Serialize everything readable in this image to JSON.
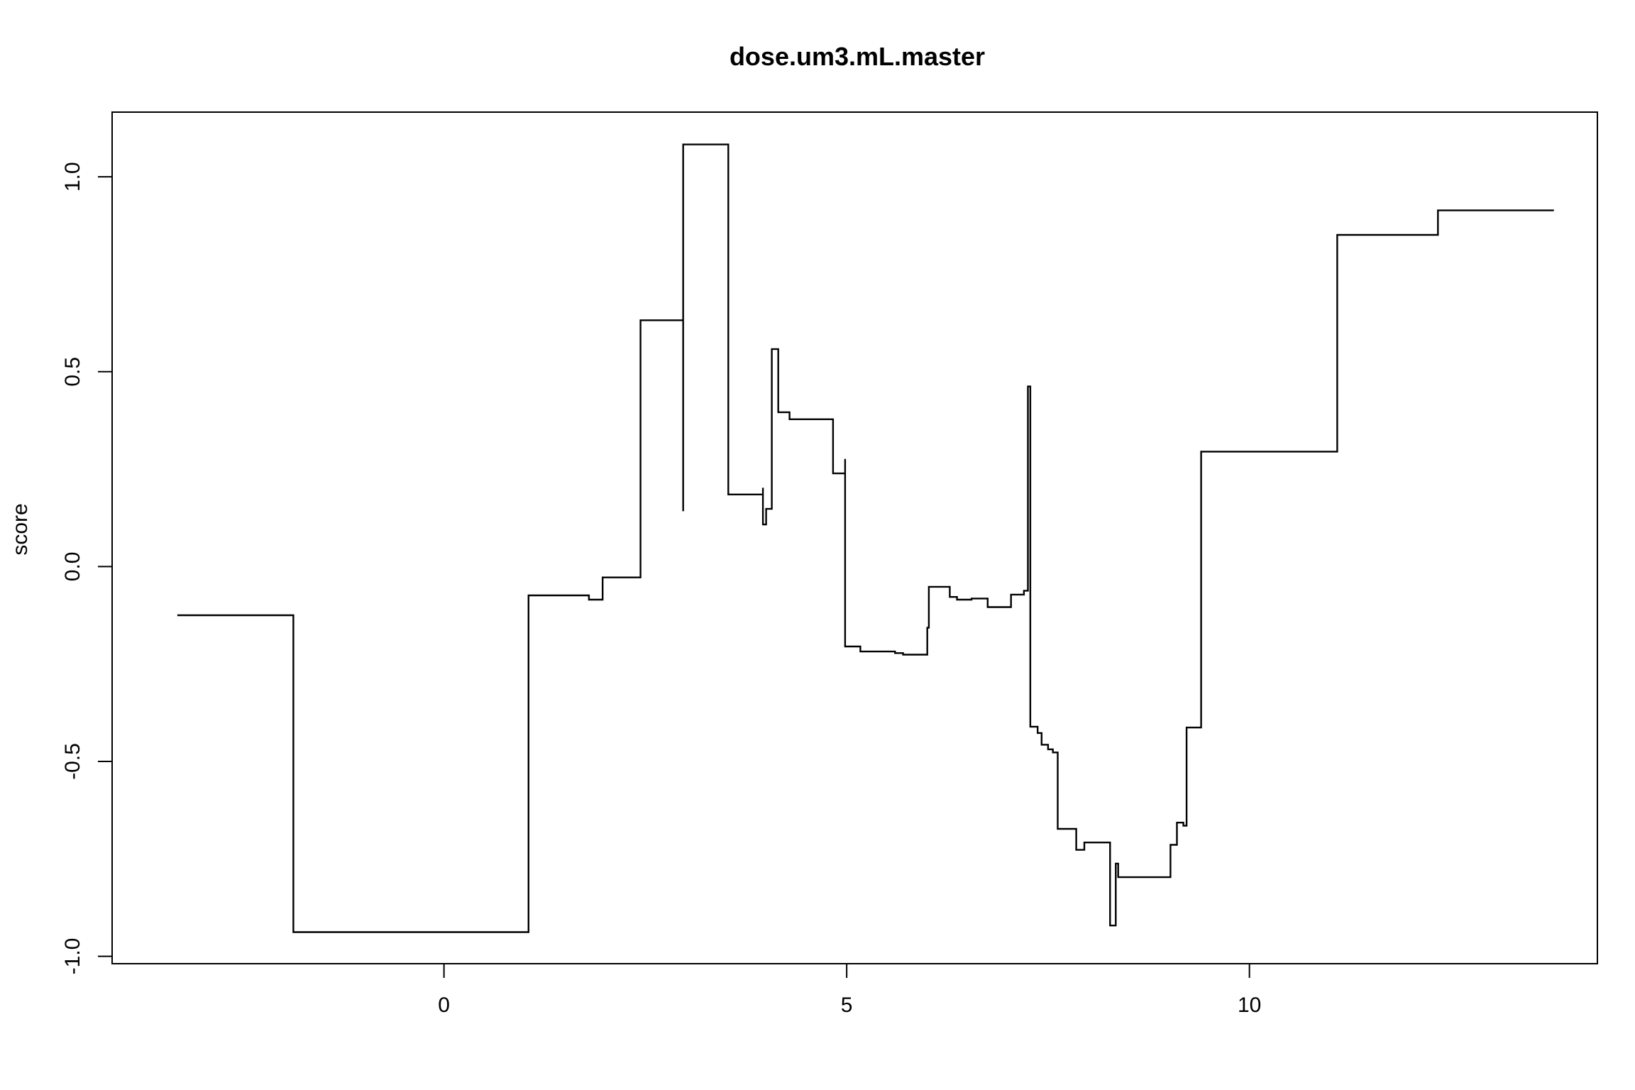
{
  "chart_data": {
    "type": "line",
    "subtype": "step",
    "title": "dose.um3.mL.master",
    "xlabel": "",
    "ylabel": "score",
    "xlim": [
      -4.12,
      14.32
    ],
    "ylim": [
      -1.019,
      1.166
    ],
    "xticks": [
      0,
      5,
      10
    ],
    "xtick_labels": [
      "0",
      "5",
      "10"
    ],
    "yticks": [
      -1.0,
      -0.5,
      0.0,
      0.5,
      1.0
    ],
    "ytick_labels": [
      "-1.0",
      "-0.5",
      "0.0",
      "0.5",
      "1.0"
    ],
    "grid": false,
    "legend": "none",
    "line_color": "#000000",
    "series": [
      {
        "points": [
          [
            -3.31,
            -0.125
          ],
          [
            -1.87,
            -0.125
          ],
          [
            -1.87,
            -0.938
          ],
          [
            1.05,
            -0.938
          ],
          [
            1.05,
            -0.074
          ],
          [
            1.8,
            -0.074
          ],
          [
            1.8,
            -0.085
          ],
          [
            1.97,
            -0.085
          ],
          [
            1.97,
            -0.028
          ],
          [
            2.44,
            -0.028
          ],
          [
            2.44,
            0.632
          ],
          [
            2.97,
            0.632
          ],
          [
            2.97,
            0.142
          ],
          [
            2.97,
            1.083
          ],
          [
            3.53,
            1.083
          ],
          [
            3.53,
            0.185
          ],
          [
            3.96,
            0.185
          ],
          [
            3.96,
            0.202
          ],
          [
            3.96,
            0.108
          ],
          [
            4.0,
            0.108
          ],
          [
            4.0,
            0.148
          ],
          [
            4.07,
            0.148
          ],
          [
            4.07,
            0.558
          ],
          [
            4.15,
            0.558
          ],
          [
            4.15,
            0.396
          ],
          [
            4.29,
            0.396
          ],
          [
            4.29,
            0.378
          ],
          [
            4.83,
            0.378
          ],
          [
            4.83,
            0.239
          ],
          [
            4.98,
            0.239
          ],
          [
            4.98,
            0.276
          ],
          [
            4.98,
            -0.205
          ],
          [
            5.17,
            -0.205
          ],
          [
            5.17,
            -0.218
          ],
          [
            5.6,
            -0.218
          ],
          [
            5.6,
            -0.222
          ],
          [
            5.7,
            -0.222
          ],
          [
            5.7,
            -0.226
          ],
          [
            6.0,
            -0.226
          ],
          [
            6.0,
            -0.157
          ],
          [
            6.02,
            -0.157
          ],
          [
            6.02,
            -0.052
          ],
          [
            6.28,
            -0.052
          ],
          [
            6.28,
            -0.078
          ],
          [
            6.37,
            -0.078
          ],
          [
            6.37,
            -0.085
          ],
          [
            6.55,
            -0.085
          ],
          [
            6.55,
            -0.082
          ],
          [
            6.75,
            -0.082
          ],
          [
            6.75,
            -0.104
          ],
          [
            7.04,
            -0.104
          ],
          [
            7.04,
            -0.072
          ],
          [
            7.2,
            -0.072
          ],
          [
            7.2,
            -0.062
          ],
          [
            7.25,
            -0.062
          ],
          [
            7.25,
            0.462
          ],
          [
            7.28,
            0.462
          ],
          [
            7.28,
            -0.411
          ],
          [
            7.37,
            -0.411
          ],
          [
            7.37,
            -0.427
          ],
          [
            7.42,
            -0.427
          ],
          [
            7.42,
            -0.457
          ],
          [
            7.5,
            -0.457
          ],
          [
            7.5,
            -0.469
          ],
          [
            7.56,
            -0.469
          ],
          [
            7.56,
            -0.477
          ],
          [
            7.62,
            -0.477
          ],
          [
            7.62,
            -0.673
          ],
          [
            7.85,
            -0.673
          ],
          [
            7.85,
            -0.727
          ],
          [
            7.95,
            -0.727
          ],
          [
            7.95,
            -0.708
          ],
          [
            8.27,
            -0.708
          ],
          [
            8.27,
            -0.921
          ],
          [
            8.34,
            -0.921
          ],
          [
            8.34,
            -0.762
          ],
          [
            8.37,
            -0.762
          ],
          [
            8.37,
            -0.797
          ],
          [
            9.02,
            -0.797
          ],
          [
            9.02,
            -0.714
          ],
          [
            9.1,
            -0.714
          ],
          [
            9.1,
            -0.657
          ],
          [
            9.18,
            -0.657
          ],
          [
            9.18,
            -0.665
          ],
          [
            9.22,
            -0.665
          ],
          [
            9.22,
            -0.413
          ],
          [
            9.4,
            -0.413
          ],
          [
            9.4,
            0.295
          ],
          [
            11.09,
            0.295
          ],
          [
            11.09,
            0.851
          ],
          [
            12.34,
            0.851
          ],
          [
            12.34,
            0.914
          ],
          [
            13.78,
            0.914
          ]
        ]
      }
    ]
  }
}
